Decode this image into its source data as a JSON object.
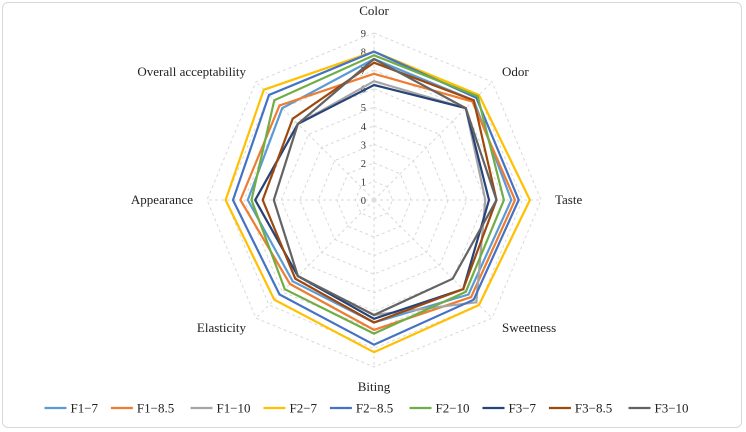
{
  "chart_data": {
    "type": "radar",
    "axes": [
      "Color",
      "Odor",
      "Taste",
      "Sweetness",
      "Biting",
      "Elasticity",
      "Appearance",
      "Overall acceptability"
    ],
    "rmin": 0,
    "rmax": 9,
    "ticks": [
      "0",
      "1",
      "2",
      "3",
      "4",
      "5",
      "6",
      "7",
      "8",
      "9"
    ],
    "series": [
      {
        "name": "F1−7",
        "color": "#5B9BD5",
        "values": [
          7.6,
          7.6,
          7.4,
          7.2,
          6.6,
          6.2,
          6.8,
          7.0
        ]
      },
      {
        "name": "F1−8.5",
        "color": "#ED7D31",
        "values": [
          6.8,
          7.5,
          7.6,
          7.4,
          7.0,
          6.4,
          7.2,
          7.2
        ]
      },
      {
        "name": "F1−10",
        "color": "#A5A5A5",
        "values": [
          6.4,
          7.0,
          6.0,
          7.8,
          6.2,
          5.8,
          6.4,
          5.8
        ]
      },
      {
        "name": "F2−7",
        "color": "#FFC000",
        "values": [
          8.0,
          8.0,
          8.4,
          8.0,
          8.2,
          7.6,
          8.0,
          8.4
        ]
      },
      {
        "name": "F2−8.5",
        "color": "#4472C4",
        "values": [
          8.0,
          7.8,
          7.8,
          7.6,
          7.8,
          7.2,
          7.6,
          8.0
        ]
      },
      {
        "name": "F2−10",
        "color": "#70AD47",
        "values": [
          7.8,
          7.9,
          7.0,
          7.0,
          7.2,
          6.8,
          6.6,
          7.6
        ]
      },
      {
        "name": "F3−7",
        "color": "#264478",
        "values": [
          6.2,
          7.0,
          6.2,
          6.8,
          6.4,
          5.8,
          6.4,
          5.8
        ]
      },
      {
        "name": "F3−8.5",
        "color": "#9E480E",
        "values": [
          7.4,
          7.6,
          6.6,
          6.8,
          6.6,
          6.0,
          6.0,
          6.2
        ]
      },
      {
        "name": "F3−10",
        "color": "#636363",
        "values": [
          7.6,
          7.0,
          6.6,
          6.0,
          6.2,
          5.8,
          5.4,
          5.8
        ]
      }
    ]
  }
}
